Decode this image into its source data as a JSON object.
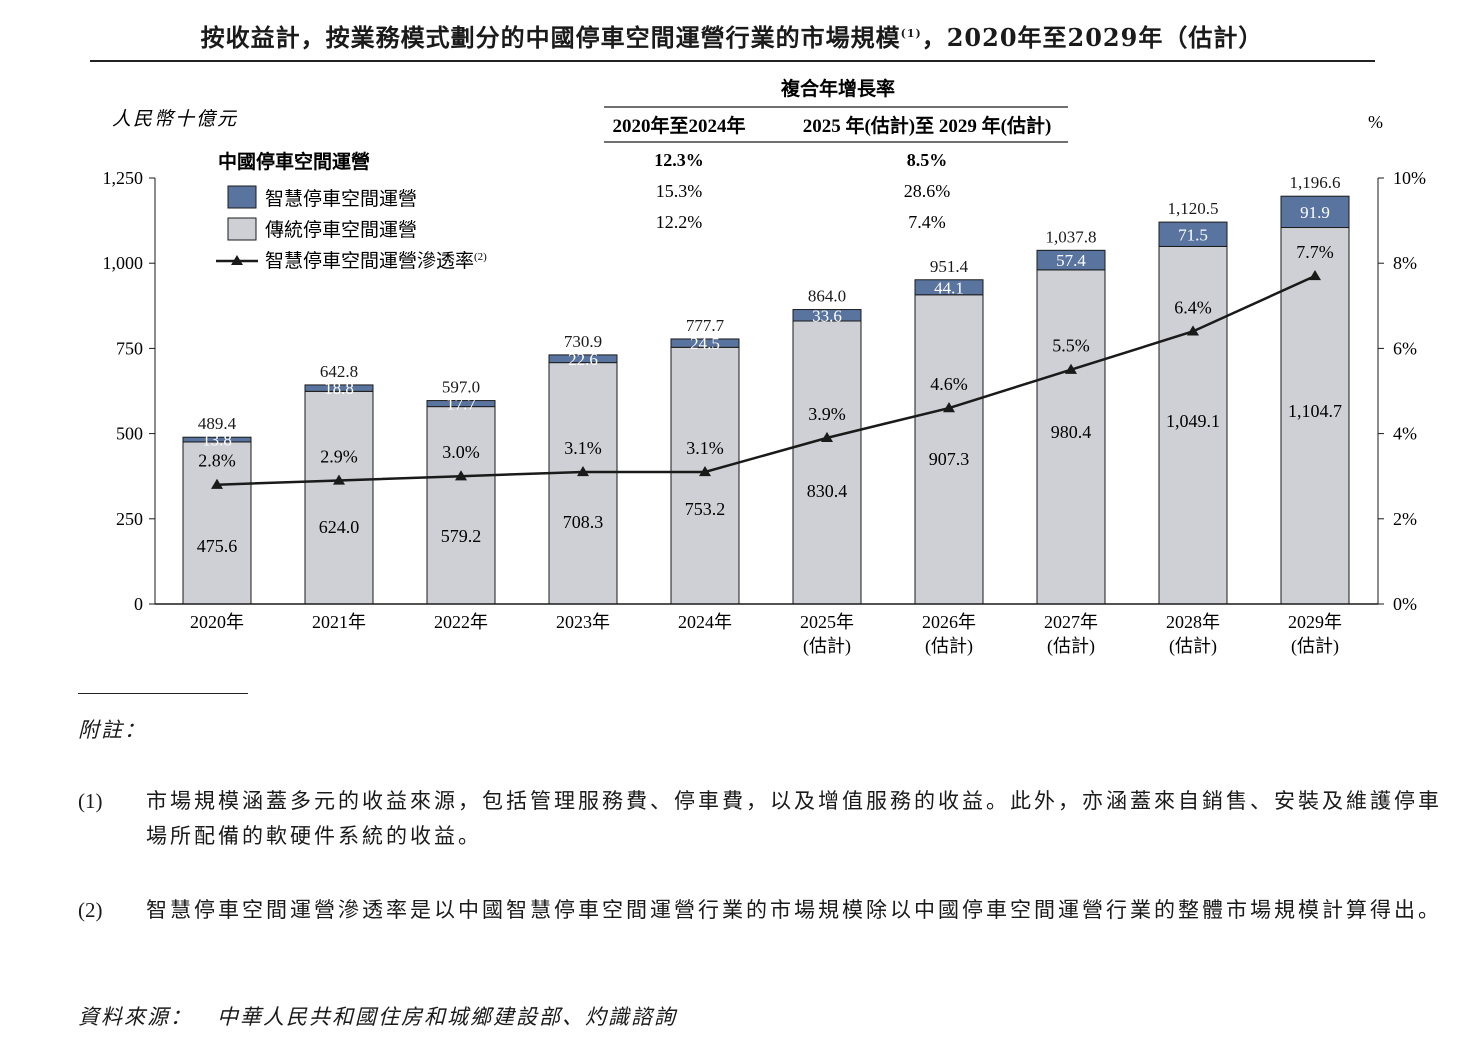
{
  "title": {
    "main": "按收益計，按業務模式劃分的中國停車空間運營行業的市場規模",
    "sup": "(1)",
    "tail": "，2020年至2029年（估計）"
  },
  "cagr": {
    "header": "複合年增長率",
    "col1": "2020年至2024年",
    "col2": "2025 年(估計)至 2029 年(估計)",
    "rows": [
      {
        "v1": "12.3%",
        "v2": "8.5%",
        "bold": true
      },
      {
        "v1": "15.3%",
        "v2": "28.6%",
        "bold": false
      },
      {
        "v1": "12.2%",
        "v2": "7.4%",
        "bold": false
      }
    ]
  },
  "chart_data": {
    "type": "bar",
    "stacked": true,
    "ylabel": "人民幣十億元",
    "y2label": "%",
    "ylim": [
      0,
      1250
    ],
    "yticks": [
      "0",
      "250",
      "500",
      "750",
      "1,000",
      "1,250"
    ],
    "y2lim": [
      0,
      10
    ],
    "y2ticks": [
      "0%",
      "2%",
      "4%",
      "6%",
      "8%",
      "10%"
    ],
    "categories": [
      "2020年",
      "2021年",
      "2022年",
      "2023年",
      "2024年",
      "2025年",
      "2026年",
      "2027年",
      "2028年",
      "2029年"
    ],
    "category_notes": [
      "",
      "",
      "",
      "",
      "",
      "(估計)",
      "(估計)",
      "(估計)",
      "(估計)",
      "(估計)"
    ],
    "legend_group": "中國停車空間運營",
    "series": [
      {
        "name": "傳統停車空間運營",
        "color": "#cfd0d5",
        "values": [
          475.6,
          624.0,
          579.2,
          708.3,
          753.2,
          830.4,
          907.3,
          980.4,
          1049.1,
          1104.7
        ],
        "labels": [
          "475.6",
          "624.0",
          "579.2",
          "708.3",
          "753.2",
          "830.4",
          "907.3",
          "980.4",
          "1,049.1",
          "1,104.7"
        ]
      },
      {
        "name": "智慧停車空間運營",
        "color": "#5a74a0",
        "values": [
          13.8,
          18.8,
          17.7,
          22.6,
          24.5,
          33.6,
          44.1,
          57.4,
          71.5,
          91.9
        ],
        "labels": [
          "13.8",
          "18.8",
          "17.7",
          "22.6",
          "24.5",
          "33.6",
          "44.1",
          "57.4",
          "71.5",
          "91.9"
        ]
      }
    ],
    "totals": [
      "489.4",
      "642.8",
      "597.0",
      "730.9",
      "777.7",
      "864.0",
      "951.4",
      "1,037.8",
      "1,120.5",
      "1,196.6"
    ],
    "line": {
      "name": "智慧停車空間運營滲透率",
      "name_sup": "(2)",
      "axis": "right",
      "values": [
        2.8,
        2.9,
        3.0,
        3.1,
        3.1,
        3.9,
        4.6,
        5.5,
        6.4,
        7.7
      ],
      "labels": [
        "2.8%",
        "2.9%",
        "3.0%",
        "3.1%",
        "3.1%",
        "3.9%",
        "4.6%",
        "5.5%",
        "6.4%",
        "7.7%"
      ]
    },
    "colors": {
      "smart": "#5a74a0",
      "traditional": "#cfd0d5",
      "line": "#1a1a1a"
    }
  },
  "notes": {
    "heading": "附註：",
    "items": [
      {
        "num": "(1)",
        "text": "市場規模涵蓋多元的收益來源，包括管理服務費、停車費，以及增值服務的收益。此外，亦涵蓋來自銷售、安裝及維護停車場所配備的軟硬件系統的收益。"
      },
      {
        "num": "(2)",
        "text": "智慧停車空間運營滲透率是以中國智慧停車空間運營行業的市場規模除以中國停車空間運營行業的整體市場規模計算得出。"
      }
    ]
  },
  "source": {
    "label": "資料來源：",
    "value": "中華人民共和國住房和城鄉建設部、灼識諮詢"
  }
}
